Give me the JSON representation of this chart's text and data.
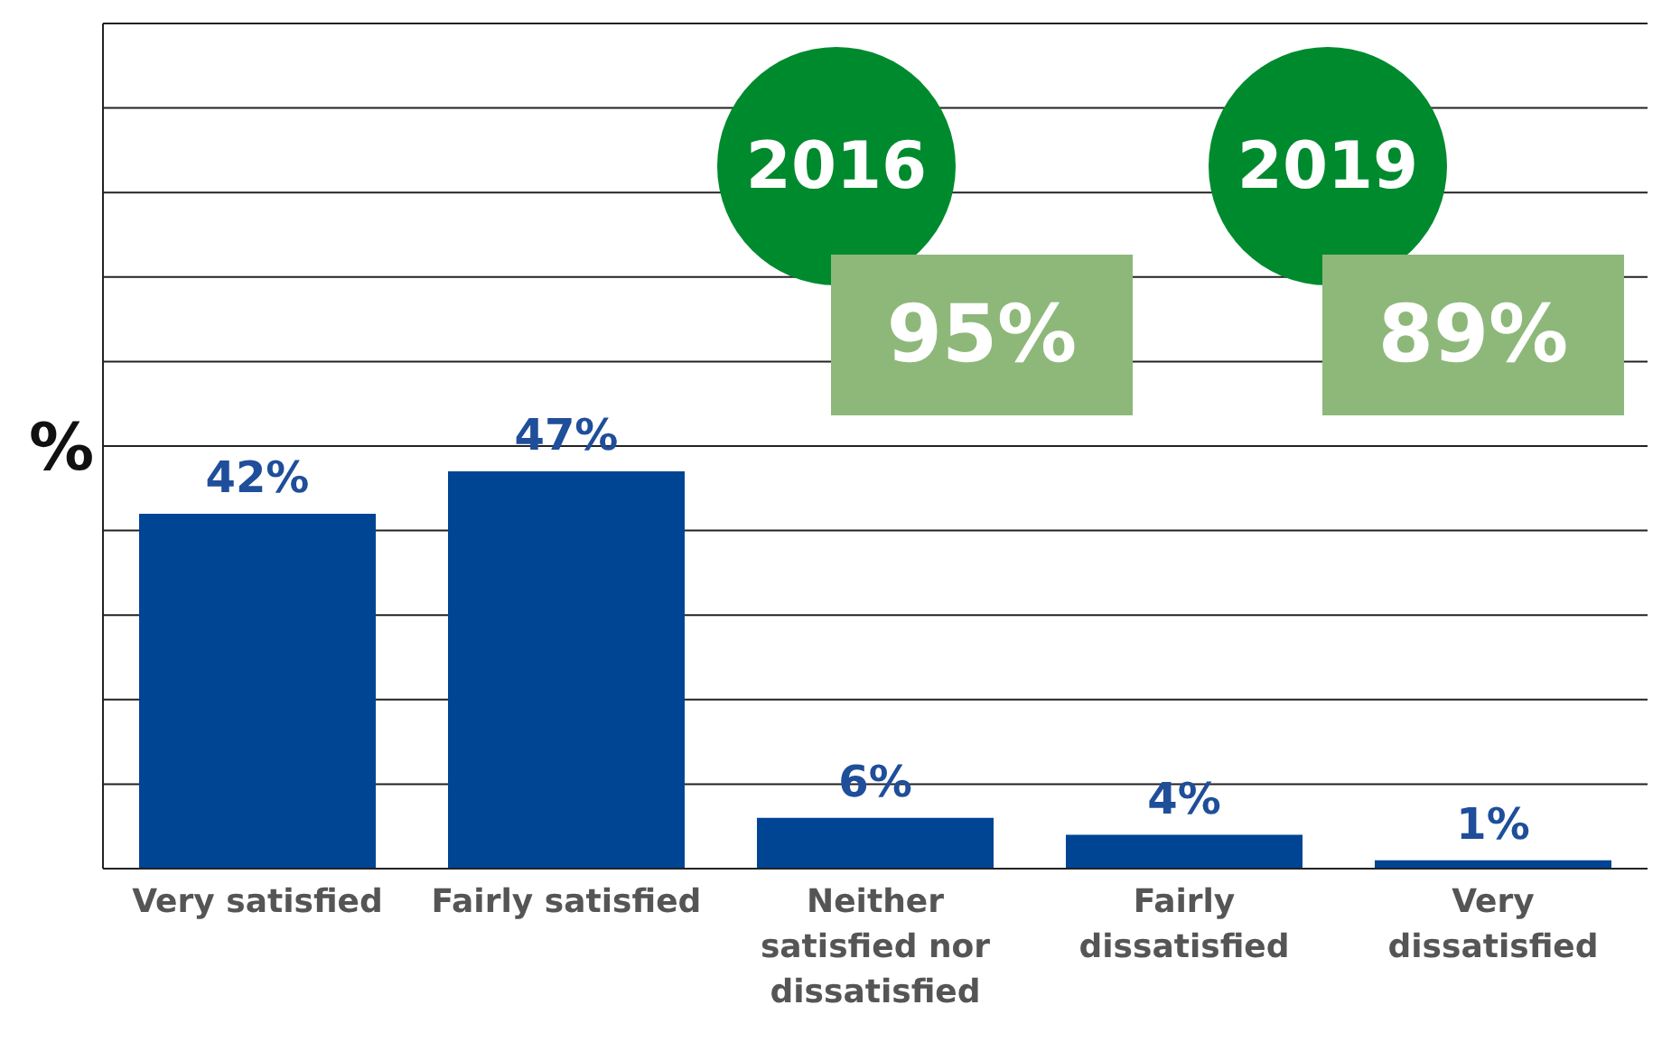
{
  "chart_data": {
    "type": "bar",
    "ylabel": "%",
    "categories": [
      "Very satisfied",
      "Fairly satisfied",
      "Neither satisfied nor dissatisfied",
      "Fairly dissatisfied",
      "Very dissatisfied"
    ],
    "values": [
      42,
      47,
      6,
      4,
      1
    ],
    "color": "#004494",
    "value_labels": [
      "42%",
      "47%",
      "6%",
      "4%",
      "1%"
    ],
    "ylim": [
      0,
      100
    ],
    "grid": "y",
    "tick_labels": "x",
    "annotations": [
      "2016",
      "95%",
      "2019",
      "89%"
    ]
  }
}
